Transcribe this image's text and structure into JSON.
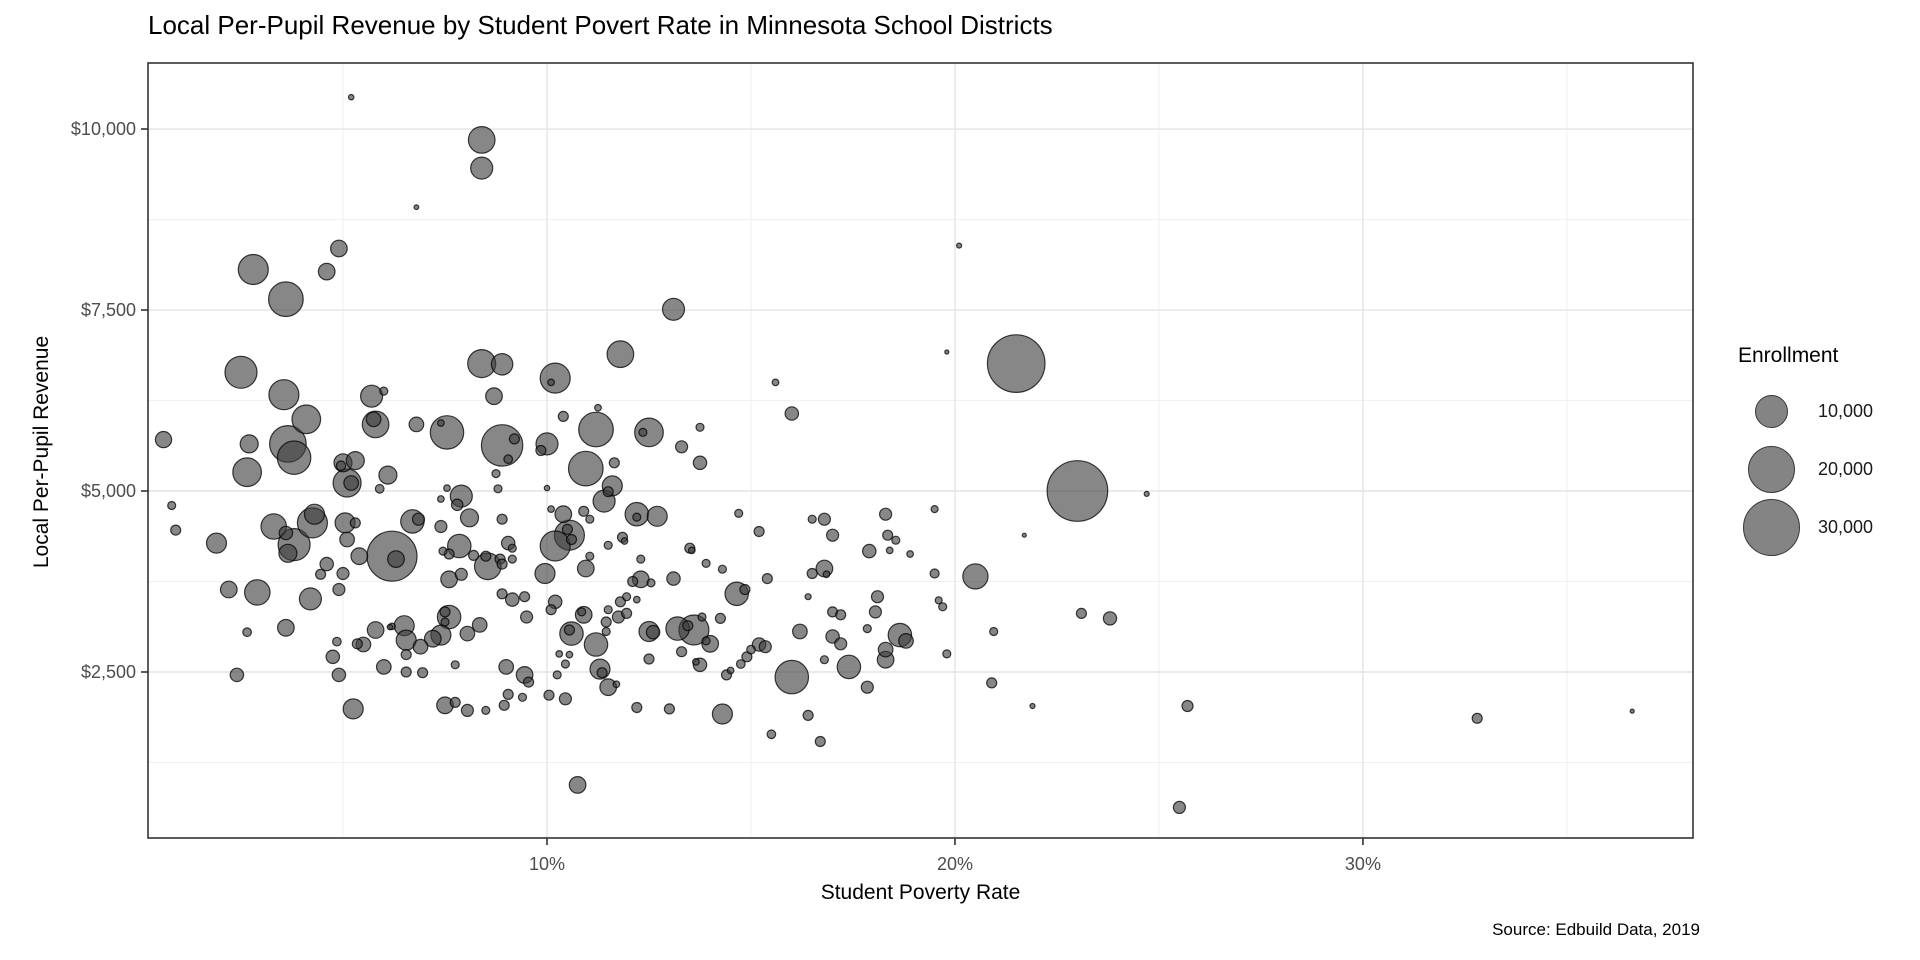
{
  "window": {
    "title": "Local Per-Pupil Revenue by Student Povert Rate in Minnesota School Districts"
  },
  "source_caption": "Source: Edbuild Data, 2019",
  "chart_data": {
    "type": "scatter",
    "subtype": "bubble",
    "title": "Local Per-Pupil Revenue by Student Povert Rate in Minnesota School Districts",
    "xlabel": "Student Poverty Rate",
    "ylabel": "Local Per-Pupil Revenue",
    "caption": "Source: Edbuild Data, 2019",
    "grid": true,
    "legend_position": "right",
    "x_axis": {
      "domain": [
        0.22,
        38.09
      ],
      "ticks": [
        {
          "v": 10,
          "label": "10%"
        },
        {
          "v": 20,
          "label": "20%"
        },
        {
          "v": 30,
          "label": "30%"
        }
      ],
      "minor_ticks": [
        5,
        15,
        25,
        35
      ],
      "unit": "percent"
    },
    "y_axis": {
      "domain": [
        207,
        10912
      ],
      "ticks": [
        {
          "v": 2500,
          "label": "$2,500"
        },
        {
          "v": 5000,
          "label": "$5,000"
        },
        {
          "v": 7500,
          "label": "$7,500"
        },
        {
          "v": 10000,
          "label": "$10,000"
        }
      ],
      "minor_ticks": [
        1250,
        3750,
        6250,
        8750
      ],
      "unit": "dollars"
    },
    "legend": {
      "title": "Enrollment",
      "items": [
        {
          "label": "10,000",
          "value": 10000
        },
        {
          "label": "20,000",
          "value": 20000
        },
        {
          "label": "30,000",
          "value": 30000
        }
      ]
    },
    "style": {
      "point_fill": "#3d3d3d",
      "point_fill_opacity": 0.62,
      "point_stroke": "#000000",
      "point_stroke_opacity": 0.75,
      "grid_major_color": "#e4e4e4",
      "grid_minor_color": "#f0f0f0",
      "panel_border_color": "#333333",
      "tick_color": "#333333",
      "tick_label_color": "#4d4d4d",
      "legend_circle_fill": "#848484"
    },
    "points_format": [
      "poverty_rate_pct",
      "local_per_pupil_revenue_usd",
      "enrollment"
    ],
    "points": [
      [
        5.2,
        10440,
        270
      ],
      [
        8.4,
        9850,
        6500
      ],
      [
        8.4,
        9460,
        4450
      ],
      [
        6.8,
        8920,
        200
      ],
      [
        4.9,
        8350,
        2530
      ],
      [
        2.8,
        8060,
        8270
      ],
      [
        4.6,
        8030,
        2530
      ],
      [
        3.6,
        7650,
        11000
      ],
      [
        13.1,
        7510,
        4450
      ],
      [
        20.1,
        8390,
        230
      ],
      [
        2.5,
        6640,
        9400
      ],
      [
        3.55,
        6330,
        8260
      ],
      [
        8.4,
        6760,
        7200
      ],
      [
        8.9,
        6750,
        4200
      ],
      [
        5.7,
        6310,
        4450
      ],
      [
        6.0,
        6380,
        590
      ],
      [
        8.7,
        6310,
        2530
      ],
      [
        4.1,
        5990,
        7500
      ],
      [
        5.8,
        5920,
        6500
      ],
      [
        5.75,
        5990,
        1960
      ],
      [
        6.8,
        5920,
        1960
      ],
      [
        7.4,
        5940,
        400
      ],
      [
        7.55,
        5810,
        10240
      ],
      [
        8.9,
        5630,
        15700
      ],
      [
        9.05,
        5440,
        680
      ],
      [
        2.7,
        5650,
        2980
      ],
      [
        3.65,
        5650,
        12300
      ],
      [
        3.8,
        5460,
        10240
      ],
      [
        2.65,
        5260,
        7500
      ],
      [
        5.0,
        5390,
        2980
      ],
      [
        4.95,
        5350,
        810
      ],
      [
        5.3,
        5420,
        2980
      ],
      [
        5.1,
        5110,
        7200
      ],
      [
        5.2,
        5110,
        1960
      ],
      [
        6.1,
        5220,
        2980
      ],
      [
        5.9,
        5030,
        680
      ],
      [
        7.55,
        5040,
        400
      ],
      [
        7.4,
        4890,
        400
      ],
      [
        7.9,
        4930,
        4450
      ],
      [
        7.8,
        4810,
        1190
      ],
      [
        8.1,
        4630,
        2980
      ],
      [
        8.75,
        5240,
        590
      ],
      [
        8.8,
        5030,
        590
      ],
      [
        9.2,
        5720,
        900
      ],
      [
        4.3,
        4680,
        3670
      ],
      [
        4.25,
        4560,
        8260
      ],
      [
        3.3,
        4510,
        5900
      ],
      [
        3.6,
        4420,
        1650
      ],
      [
        1.9,
        4280,
        3670
      ],
      [
        3.8,
        4260,
        9400
      ],
      [
        3.65,
        4140,
        2980
      ],
      [
        5.05,
        4560,
        3670
      ],
      [
        5.3,
        4560,
        900
      ],
      [
        5.1,
        4330,
        1960
      ],
      [
        5.4,
        4100,
        2530
      ],
      [
        6.2,
        4100,
        23000
      ],
      [
        6.3,
        4060,
        2530
      ],
      [
        6.7,
        4580,
        5030
      ],
      [
        6.85,
        4610,
        1320
      ],
      [
        7.4,
        4510,
        1320
      ],
      [
        7.45,
        4170,
        590
      ],
      [
        7.85,
        4240,
        5030
      ],
      [
        7.6,
        4130,
        900
      ],
      [
        8.2,
        4110,
        900
      ],
      [
        8.5,
        4100,
        900
      ],
      [
        8.9,
        4610,
        900
      ],
      [
        9.05,
        4280,
        1650
      ],
      [
        8.85,
        4060,
        900
      ],
      [
        9.15,
        4210,
        590
      ],
      [
        4.6,
        3990,
        1650
      ],
      [
        5.0,
        3860,
        1320
      ],
      [
        4.45,
        3850,
        900
      ],
      [
        7.6,
        3780,
        2530
      ],
      [
        7.9,
        3850,
        1320
      ],
      [
        8.55,
        3960,
        6500
      ],
      [
        8.9,
        3990,
        900
      ],
      [
        9.15,
        4060,
        590
      ],
      [
        11.8,
        6890,
        6500
      ],
      [
        10.2,
        6560,
        8260
      ],
      [
        10.1,
        6500,
        400
      ],
      [
        15.6,
        6500,
        400
      ],
      [
        16.0,
        6070,
        1650
      ],
      [
        10.4,
        6030,
        900
      ],
      [
        11.25,
        6150,
        400
      ],
      [
        11.2,
        5850,
        11000
      ],
      [
        12.5,
        5810,
        7500
      ],
      [
        12.35,
        5810,
        590
      ],
      [
        13.3,
        5610,
        1320
      ],
      [
        13.75,
        5880,
        590
      ],
      [
        13.75,
        5390,
        1650
      ],
      [
        10.0,
        5650,
        4450
      ],
      [
        9.85,
        5560,
        900
      ],
      [
        10.95,
        5310,
        11000
      ],
      [
        11.65,
        5390,
        900
      ],
      [
        10.0,
        5040,
        270
      ],
      [
        11.6,
        5070,
        3670
      ],
      [
        11.5,
        4990,
        900
      ],
      [
        11.4,
        4860,
        4450
      ],
      [
        10.1,
        4750,
        400
      ],
      [
        10.4,
        4680,
        2530
      ],
      [
        10.9,
        4720,
        900
      ],
      [
        11.05,
        4610,
        590
      ],
      [
        12.2,
        4680,
        5030
      ],
      [
        12.2,
        4640,
        590
      ],
      [
        12.7,
        4650,
        3670
      ],
      [
        14.7,
        4690,
        590
      ],
      [
        10.5,
        4470,
        900
      ],
      [
        10.55,
        4390,
        8260
      ],
      [
        10.6,
        4330,
        900
      ],
      [
        10.2,
        4240,
        8260
      ],
      [
        11.85,
        4360,
        900
      ],
      [
        11.9,
        4310,
        400
      ],
      [
        11.5,
        4250,
        590
      ],
      [
        13.5,
        4210,
        900
      ],
      [
        13.55,
        4180,
        400
      ],
      [
        15.2,
        4440,
        900
      ],
      [
        16.5,
        4610,
        590
      ],
      [
        16.8,
        4610,
        1320
      ],
      [
        17.0,
        4390,
        1320
      ],
      [
        18.3,
        4680,
        1320
      ],
      [
        18.35,
        4390,
        900
      ],
      [
        18.55,
        4320,
        590
      ],
      [
        17.9,
        4170,
        1650
      ],
      [
        18.4,
        4180,
        400
      ],
      [
        18.9,
        4130,
        400
      ],
      [
        11.05,
        4100,
        590
      ],
      [
        10.95,
        3930,
        2530
      ],
      [
        12.3,
        4060,
        590
      ],
      [
        12.3,
        3780,
        2530
      ],
      [
        12.1,
        3750,
        900
      ],
      [
        12.55,
        3730,
        590
      ],
      [
        13.1,
        3790,
        1650
      ],
      [
        13.9,
        4000,
        590
      ],
      [
        14.3,
        3920,
        590
      ],
      [
        15.4,
        3790,
        900
      ],
      [
        16.5,
        3860,
        900
      ],
      [
        16.8,
        3930,
        2530
      ],
      [
        16.85,
        3850,
        400
      ],
      [
        9.95,
        3860,
        3670
      ],
      [
        19.8,
        6920,
        150
      ],
      [
        21.5,
        6760,
        30500
      ],
      [
        23.0,
        5000,
        33700
      ],
      [
        24.7,
        4960,
        230
      ],
      [
        19.5,
        4750,
        450
      ],
      [
        21.7,
        4390,
        150
      ],
      [
        19.5,
        3860,
        740
      ],
      [
        20.5,
        3820,
        5800
      ],
      [
        2.2,
        3640,
        2500
      ],
      [
        2.9,
        3600,
        5900
      ],
      [
        4.2,
        3510,
        4450
      ],
      [
        2.65,
        3050,
        680
      ],
      [
        3.6,
        3110,
        2530
      ],
      [
        4.9,
        3640,
        1320
      ],
      [
        4.75,
        2710,
        1650
      ],
      [
        4.85,
        2920,
        680
      ],
      [
        4.9,
        2460,
        1650
      ],
      [
        2.4,
        2460,
        1650
      ],
      [
        5.25,
        1990,
        3670
      ],
      [
        5.5,
        2880,
        1960
      ],
      [
        5.35,
        2890,
        900
      ],
      [
        5.8,
        3080,
        2530
      ],
      [
        6.2,
        3130,
        400
      ],
      [
        6.0,
        2570,
        1960
      ],
      [
        6.5,
        3140,
        3670
      ],
      [
        6.55,
        2940,
        3670
      ],
      [
        6.55,
        2740,
        900
      ],
      [
        6.9,
        2850,
        1960
      ],
      [
        6.55,
        2500,
        900
      ],
      [
        6.95,
        2490,
        900
      ],
      [
        7.2,
        2960,
        2530
      ],
      [
        7.4,
        3010,
        3670
      ],
      [
        7.6,
        3260,
        5030
      ],
      [
        7.5,
        3330,
        900
      ],
      [
        7.5,
        3190,
        590
      ],
      [
        7.75,
        2600,
        590
      ],
      [
        8.05,
        3030,
        1960
      ],
      [
        8.35,
        3150,
        1960
      ],
      [
        6.15,
        3120,
        270
      ],
      [
        9.0,
        2570,
        1960
      ],
      [
        9.45,
        2460,
        2530
      ],
      [
        9.55,
        2360,
        900
      ],
      [
        9.05,
        2190,
        900
      ],
      [
        9.4,
        2150,
        590
      ],
      [
        8.95,
        2040,
        900
      ],
      [
        7.5,
        2040,
        2530
      ],
      [
        7.75,
        2080,
        900
      ],
      [
        8.05,
        1970,
        1320
      ],
      [
        8.5,
        1970,
        590
      ],
      [
        9.15,
        3500,
        1650
      ],
      [
        9.45,
        3540,
        900
      ],
      [
        9.5,
        3260,
        1320
      ],
      [
        8.9,
        3580,
        900
      ],
      [
        10.2,
        3470,
        1650
      ],
      [
        10.1,
        3360,
        900
      ],
      [
        10.9,
        3290,
        2530
      ],
      [
        10.85,
        3330,
        590
      ],
      [
        10.6,
        3030,
        5030
      ],
      [
        10.55,
        3080,
        900
      ],
      [
        11.2,
        2880,
        5030
      ],
      [
        11.45,
        3060,
        590
      ],
      [
        10.3,
        2750,
        400
      ],
      [
        10.55,
        2740,
        400
      ],
      [
        10.45,
        2610,
        590
      ],
      [
        11.45,
        3190,
        900
      ],
      [
        11.5,
        3360,
        590
      ],
      [
        11.75,
        3260,
        1320
      ],
      [
        11.95,
        3310,
        900
      ],
      [
        12.2,
        3500,
        400
      ],
      [
        11.8,
        3470,
        900
      ],
      [
        11.95,
        3540,
        590
      ],
      [
        11.3,
        2540,
        3670
      ],
      [
        11.35,
        2490,
        900
      ],
      [
        11.5,
        2290,
        2530
      ],
      [
        11.7,
        2330,
        400
      ],
      [
        10.25,
        2460,
        590
      ],
      [
        10.05,
        2180,
        900
      ],
      [
        10.45,
        2130,
        1320
      ],
      [
        12.2,
        2010,
        900
      ],
      [
        13.0,
        1990,
        900
      ],
      [
        14.3,
        1920,
        3670
      ],
      [
        15.5,
        1640,
        680
      ],
      [
        16.4,
        1900,
        900
      ],
      [
        16.7,
        1540,
        900
      ],
      [
        10.75,
        940,
        2530
      ],
      [
        12.5,
        3060,
        3670
      ],
      [
        12.6,
        3050,
        1650
      ],
      [
        13.2,
        3100,
        5030
      ],
      [
        13.6,
        3080,
        8260
      ],
      [
        13.45,
        3140,
        900
      ],
      [
        13.8,
        3260,
        590
      ],
      [
        14.25,
        3240,
        900
      ],
      [
        14.0,
        2890,
        2530
      ],
      [
        13.9,
        2930,
        590
      ],
      [
        13.3,
        2780,
        900
      ],
      [
        12.5,
        2680,
        900
      ],
      [
        13.75,
        2600,
        1650
      ],
      [
        13.65,
        2640,
        400
      ],
      [
        14.4,
        2460,
        900
      ],
      [
        14.5,
        2520,
        400
      ],
      [
        14.75,
        2610,
        680
      ],
      [
        14.9,
        2710,
        900
      ],
      [
        15.0,
        2810,
        680
      ],
      [
        15.2,
        2880,
        1650
      ],
      [
        15.35,
        2850,
        1320
      ],
      [
        14.65,
        3580,
        5030
      ],
      [
        14.85,
        3640,
        900
      ],
      [
        16.2,
        3060,
        1960
      ],
      [
        16.8,
        2670,
        590
      ],
      [
        17.0,
        3330,
        900
      ],
      [
        17.2,
        3290,
        900
      ],
      [
        17.0,
        2990,
        1650
      ],
      [
        17.2,
        2890,
        1320
      ],
      [
        17.4,
        2570,
        5030
      ],
      [
        16.0,
        2430,
        10240
      ],
      [
        17.85,
        2290,
        1320
      ],
      [
        18.1,
        3540,
        1320
      ],
      [
        18.05,
        3330,
        1320
      ],
      [
        18.3,
        2810,
        1960
      ],
      [
        18.65,
        3010,
        5030
      ],
      [
        18.8,
        2930,
        1960
      ],
      [
        18.3,
        2670,
        2530
      ],
      [
        17.85,
        3100,
        590
      ],
      [
        16.4,
        3540,
        330
      ],
      [
        19.6,
        3490,
        450
      ],
      [
        19.7,
        3400,
        590
      ],
      [
        23.1,
        3310,
        900
      ],
      [
        23.8,
        3240,
        1600
      ],
      [
        20.95,
        3060,
        590
      ],
      [
        19.8,
        2750,
        590
      ],
      [
        20.9,
        2350,
        900
      ],
      [
        21.9,
        2030,
        230
      ],
      [
        25.7,
        2030,
        1100
      ],
      [
        32.8,
        1860,
        900
      ],
      [
        36.6,
        1960,
        150
      ],
      [
        25.5,
        630,
        1320
      ],
      [
        0.6,
        5710,
        2400
      ],
      [
        0.8,
        4800,
        600
      ],
      [
        0.9,
        4460,
        900
      ]
    ]
  }
}
